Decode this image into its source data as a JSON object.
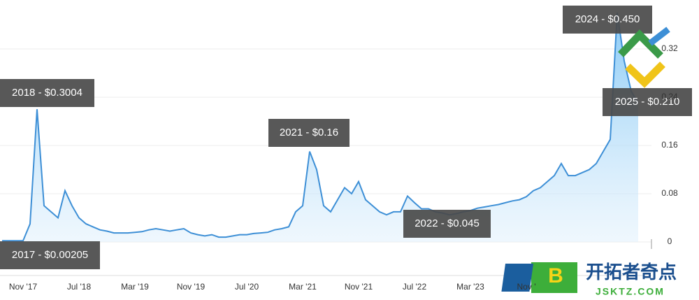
{
  "chart_data": {
    "type": "line",
    "categories": [
      null,
      null,
      null,
      "Nov '17",
      null,
      null,
      null,
      null,
      null,
      null,
      null,
      "Jul '18",
      null,
      null,
      null,
      null,
      null,
      null,
      null,
      "Mar '19",
      null,
      null,
      null,
      null,
      null,
      null,
      null,
      "Nov '19",
      null,
      null,
      null,
      null,
      null,
      null,
      null,
      "Jul '20",
      null,
      null,
      null,
      null,
      null,
      null,
      null,
      "Mar '21",
      null,
      null,
      null,
      null,
      null,
      null,
      null,
      "Nov '21",
      null,
      null,
      null,
      null,
      null,
      null,
      null,
      "Jul '22",
      null,
      null,
      null,
      null,
      null,
      null,
      null,
      "Mar '23",
      null,
      null,
      null,
      null,
      null,
      null,
      null,
      "Nov '",
      null,
      null,
      null,
      null,
      null,
      null,
      null,
      null,
      null,
      null,
      null,
      null,
      null,
      null,
      null,
      null
    ],
    "series": [
      {
        "name": null,
        "color": "#3d8fd6",
        "values": [
          0.002,
          0.002,
          0.002,
          0.002,
          0.03,
          0.22,
          0.06,
          0.05,
          0.04,
          0.085,
          0.06,
          0.04,
          0.03,
          0.025,
          0.02,
          0.018,
          0.015,
          0.015,
          0.015,
          0.016,
          0.017,
          0.02,
          0.022,
          0.02,
          0.018,
          0.02,
          0.022,
          0.015,
          0.012,
          0.01,
          0.012,
          0.008,
          0.008,
          0.01,
          0.012,
          0.012,
          0.014,
          0.015,
          0.016,
          0.02,
          0.022,
          0.025,
          0.05,
          0.06,
          0.15,
          0.12,
          0.06,
          0.05,
          0.07,
          0.09,
          0.08,
          0.1,
          0.07,
          0.06,
          0.05,
          0.045,
          0.05,
          0.05,
          0.076,
          0.065,
          0.055,
          0.055,
          0.05,
          0.048,
          0.045,
          0.047,
          0.05,
          0.052,
          0.056,
          0.058,
          0.06,
          0.062,
          0.065,
          0.068,
          0.07,
          0.075,
          0.085,
          0.09,
          0.1,
          0.11,
          0.13,
          0.11,
          0.11,
          0.115,
          0.12,
          0.13,
          0.15,
          0.17,
          0.38,
          0.3,
          0.25,
          0.23
        ]
      }
    ],
    "ylim": [
      0,
      0.39
    ],
    "yticks": [
      0,
      0.08,
      0.16,
      0.24,
      0.32
    ],
    "grid": true,
    "annotations": [
      "2018 - $0.3004",
      "2017 - $0.00205",
      "2021 - $0.16",
      "2022 - $0.045",
      "2024 - $0.450",
      "2025 - $0.210"
    ]
  },
  "watermark": {
    "brand": "开拓者奇点",
    "site": "JSKTZ.COM",
    "badge": "B"
  }
}
